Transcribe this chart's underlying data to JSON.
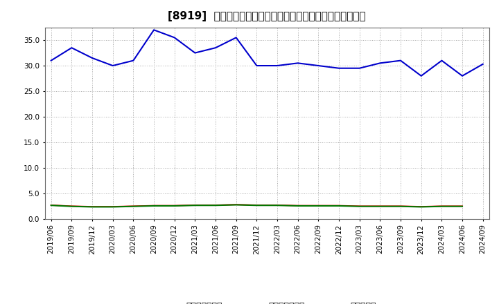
{
  "title": "[8919]  売上債権回転率、買入債務回転率、在庫回転率の推移",
  "x_labels": [
    "2019/06",
    "2019/09",
    "2019/12",
    "2020/03",
    "2020/06",
    "2020/09",
    "2020/12",
    "2021/03",
    "2021/06",
    "2021/09",
    "2021/12",
    "2022/03",
    "2022/06",
    "2022/09",
    "2022/12",
    "2023/03",
    "2023/06",
    "2023/09",
    "2023/12",
    "2024/03",
    "2024/06",
    "2024/09"
  ],
  "receivables_turnover": [
    2.7,
    2.5,
    2.4,
    2.4,
    2.5,
    2.6,
    2.6,
    2.7,
    2.7,
    2.8,
    2.7,
    2.7,
    2.6,
    2.6,
    2.6,
    2.5,
    2.5,
    2.5,
    2.4,
    2.5,
    2.5
  ],
  "payables_turnover": [
    31.0,
    33.5,
    31.5,
    30.0,
    31.0,
    37.0,
    35.5,
    32.5,
    33.5,
    35.5,
    30.0,
    30.0,
    30.5,
    30.0,
    29.5,
    29.5,
    30.5,
    31.0,
    28.0,
    31.0,
    28.0,
    30.3
  ],
  "inventory_turnover": [
    2.65,
    2.45,
    2.35,
    2.35,
    2.45,
    2.55,
    2.55,
    2.65,
    2.65,
    2.75,
    2.65,
    2.65,
    2.55,
    2.55,
    2.55,
    2.45,
    2.45,
    2.45,
    2.35,
    2.45,
    2.45
  ],
  "receivables_color": "#ff0000",
  "payables_color": "#0000cc",
  "inventory_color": "#007700",
  "ylim_min": 0.0,
  "ylim_max": 37.5,
  "yticks": [
    0.0,
    5.0,
    10.0,
    15.0,
    20.0,
    25.0,
    30.0,
    35.0
  ],
  "legend_labels": [
    "売上債権回転率",
    "買入債務回転率",
    "在庫回転率"
  ],
  "background_color": "#ffffff",
  "grid_color": "#aaaaaa",
  "title_fontsize": 11,
  "tick_fontsize": 7.5,
  "legend_fontsize": 9
}
